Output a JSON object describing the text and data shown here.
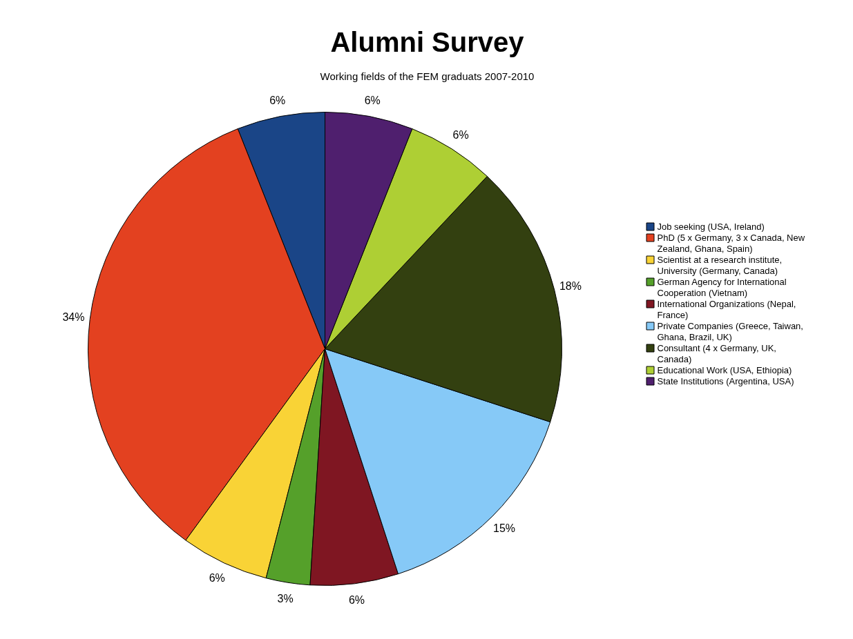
{
  "chart_data": {
    "type": "pie",
    "title": "Alumni Survey",
    "subtitle": "Working fields of the FEM graduats 2007-2010",
    "categories": [
      "Job seeking (USA, Ireland)",
      "PhD (5 x Germany, 3 x Canada, New Zealand, Ghana, Spain)",
      "Scientist at a research institute, University (Germany, Canada)",
      "German Agency for International Cooperation (Vietnam)",
      "International Organizations (Nepal, France)",
      "Private Companies (Greece, Taiwan, Ghana, Brazil, UK)",
      "Consultant (4 x Germany, UK, Canada)",
      "Educational Work (USA, Ethiopia)",
      "State Institutions (Argentina, USA)"
    ],
    "values": [
      6,
      34,
      6,
      3,
      6,
      15,
      18,
      6,
      6
    ],
    "colors": [
      "#1a4587",
      "#e34120",
      "#f9d336",
      "#55a02a",
      "#7f1622",
      "#86c9f7",
      "#334010",
      "#aecf34",
      "#4f1f6e"
    ],
    "value_labels": [
      "6%",
      "34%",
      "6%",
      "3%",
      "6%",
      "15%",
      "18%",
      "6%",
      "6%"
    ],
    "legend": "right"
  }
}
